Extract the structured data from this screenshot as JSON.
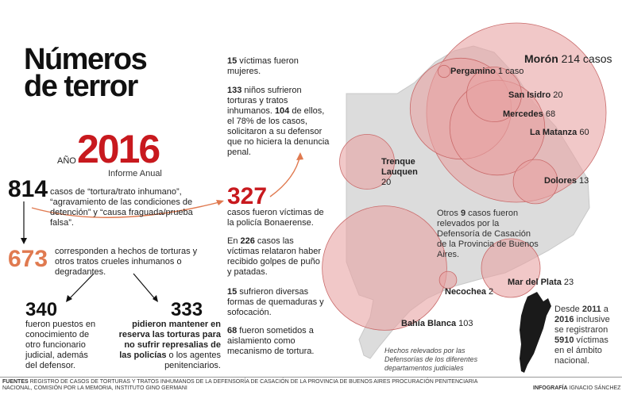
{
  "title": {
    "line1": "Números",
    "line2": "de terror"
  },
  "year": {
    "prefix": "AÑO",
    "value": "2016",
    "subtitle": "Informe Anual"
  },
  "left": {
    "n814": "814",
    "t814": "casos de “tortura/trato inhumano”, “agravamiento de las condiciones de detención” y “causa fraguada/prueba falsa”.",
    "n673": "673",
    "t673": "corresponden a hechos de torturas y otros tratos crueles inhumanos o degradantes.",
    "n340": "340",
    "t340": "fueron puestos en conocimiento de otro funcionario judicial, además del defensor.",
    "n333": "333",
    "t333_bold": "pidieron mantener en reserva las torturas para no sufrir represalias de las policías",
    "t333_rest": " o los agentes penitenciarios."
  },
  "middle": {
    "p1_num": "15",
    "p1_text": " víctimas fueron mujeres.",
    "p2_num": "133",
    "p2_text1": " niños sufrieron torturas y tratos inhumanos. ",
    "p2_num2": "104",
    "p2_text2": " de ellos, el 78% de los casos, solicitaron a su defensor que no hiciera la denuncia penal.",
    "n327": "327",
    "t327": "casos fueron víctimas de la policía Bonaerense.",
    "p3_pre": "En ",
    "p3_num": "226",
    "p3_text": " casos las víctimas relataron haber recibido golpes de puño y patadas.",
    "p4_num": "15",
    "p4_text": " sufrieron diversas formas de quemaduras y sofocación.",
    "p5_num": "68",
    "p5_text": " fueron sometidos a aislamiento como mecanismo de tortura."
  },
  "map": {
    "note_pre": "Otros ",
    "note_num": "9",
    "note_text": " casos fueron relevados por la Defensoría de Casación de la Provincia de Buenos Aires.",
    "italic_note": "Hechos relevados por las Defensorías de los diferentes departamentos judiciales",
    "national_pre": "Desde ",
    "national_y1": "2011",
    "national_mid": " a ",
    "national_y2": "2016",
    "national_mid2": " inclusive se registraron ",
    "national_num": "5910",
    "national_text": " víctimas en el ámbito nacional.",
    "bubble_color": "#e8a3a3",
    "bubble_stroke": "#c96a6a"
  },
  "chart_data": {
    "type": "bubble-map",
    "title": "Números de terror",
    "series": [
      {
        "name": "Morón",
        "value": 214,
        "unit": "casos"
      },
      {
        "name": "Pergamino",
        "value": 1,
        "unit": "caso"
      },
      {
        "name": "San Isidro",
        "value": 20
      },
      {
        "name": "Mercedes",
        "value": 68
      },
      {
        "name": "La Matanza",
        "value": 60
      },
      {
        "name": "Dolores",
        "value": 13
      },
      {
        "name": "Trenque Lauquen",
        "value": 20
      },
      {
        "name": "Mar del Plata",
        "value": 23
      },
      {
        "name": "Necochea",
        "value": 2
      },
      {
        "name": "Bahía Blanca",
        "value": 103
      }
    ]
  },
  "footer": {
    "sources_label": "FUENTES",
    "sources_text": " Registro de casos de torturas y tratos inhumanos de la Defensoría de Casación de la Provincia de Buenos Aires Procuración Penitenciaria Nacional, Comisión por la Memoria, Instituto Gino Germani",
    "credit_label": "INFOGRAFÍA",
    "credit_text": " IGNACIO SÁNCHEZ"
  }
}
